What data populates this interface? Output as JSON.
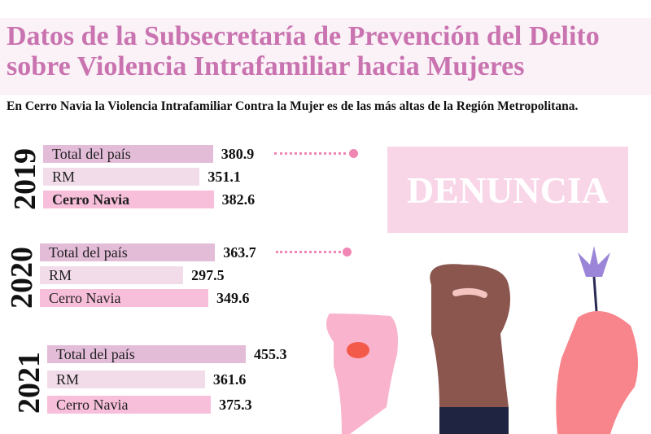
{
  "title": {
    "line1": "Datos de la Subsecretaría de Prevención del Delito",
    "line2_prefix": "sobre ",
    "line2_bold": "Violencia Intrafamiliar hacia Mujeres"
  },
  "subtitle": "En Cerro Navia la Violencia Intrafamiliar Contra la Mujer es de las más altas de la Región Metropolitana.",
  "badge": "DENUNCIA",
  "colors": {
    "total": "#e3bcd8",
    "rm": "#f3dce9",
    "cerro_navia": "#f8bfdb",
    "accent": "#c973b0",
    "dots": "#ef86b4"
  },
  "chart_data": {
    "type": "bar",
    "orientation": "horizontal",
    "categories": [
      "Total del país",
      "RM",
      "Cerro Navia"
    ],
    "groups": [
      {
        "year": "2019",
        "values": [
          380.9,
          351.1,
          382.6
        ],
        "labels": [
          "380.9",
          "351.1",
          "382.6"
        ]
      },
      {
        "year": "2020",
        "values": [
          363.7,
          297.5,
          349.6
        ],
        "labels": [
          "363.7",
          "297.5",
          "349.6"
        ]
      },
      {
        "year": "2021",
        "values": [
          455.3,
          361.6,
          375.3
        ],
        "labels": [
          "455.3",
          "361.6",
          "375.3"
        ]
      }
    ]
  }
}
